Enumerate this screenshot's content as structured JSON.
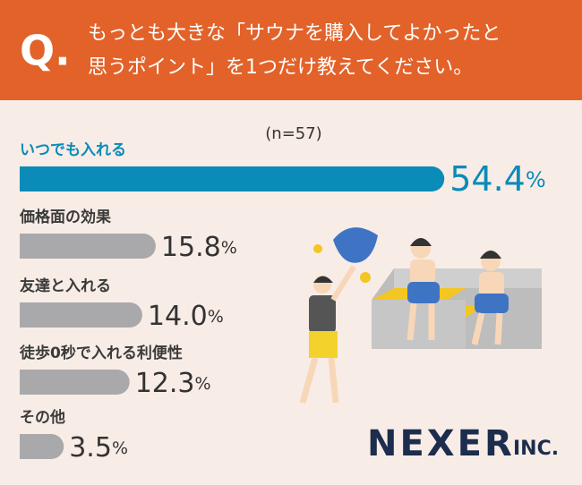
{
  "chart_data": {
    "type": "bar",
    "label": "Q.",
    "title": [
      "もっとも大きな「サウナを購入してよかったと",
      "思うポイント」を1つだけ教えてください。"
    ],
    "note": "(n=57)",
    "categories": [
      "いつでも入れる",
      "価格面の効果",
      "友達と入れる",
      "徒歩0秒で入れる利便性",
      "その他"
    ],
    "values": [
      54.4,
      15.8,
      14.0,
      12.3,
      3.5
    ],
    "value_labels": [
      "54.4%",
      "15.8%",
      "14.0%",
      "12.3%",
      "3.5%"
    ],
    "colors": [
      "#0a8bb8",
      "#a9a9ab",
      "#a9a9ab",
      "#a9a9ab",
      "#a9a9ab"
    ]
  },
  "logo": {
    "name": "NEXER",
    "suffix": "INC."
  }
}
